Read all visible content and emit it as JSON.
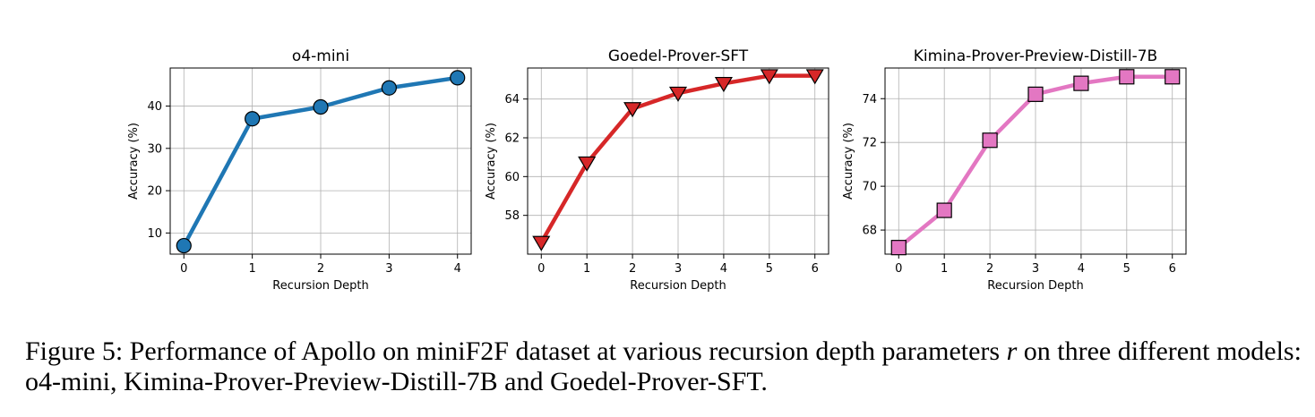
{
  "chart_data": [
    {
      "type": "line",
      "title": "o4-mini",
      "xlabel": "Recursion Depth",
      "ylabel": "Accuracy (%)",
      "x": [
        0,
        1,
        2,
        3,
        4
      ],
      "values": [
        7.0,
        37.0,
        39.8,
        44.3,
        46.7
      ],
      "xlim": [
        -0.2,
        4.2
      ],
      "ylim": [
        5,
        49
      ],
      "xticks": [
        "0",
        "1",
        "2",
        "3",
        "4"
      ],
      "yticks": [
        10,
        20,
        30,
        40
      ],
      "marker": "circle",
      "color": "#1f77b4",
      "grid": true
    },
    {
      "type": "line",
      "title": "Goedel-Prover-SFT",
      "xlabel": "Recursion Depth",
      "ylabel": "Accuracy (%)",
      "x": [
        0,
        1,
        2,
        3,
        4,
        5,
        6
      ],
      "values": [
        56.6,
        60.7,
        63.5,
        64.3,
        64.8,
        65.2,
        65.2
      ],
      "xlim": [
        -0.3,
        6.3
      ],
      "ylim": [
        56.0,
        65.6
      ],
      "xticks": [
        "0",
        "1",
        "2",
        "3",
        "4",
        "5",
        "6"
      ],
      "yticks": [
        58,
        60,
        62,
        64
      ],
      "marker": "triangle-down",
      "color": "#d62728",
      "grid": true
    },
    {
      "type": "line",
      "title": "Kimina-Prover-Preview-Distill-7B",
      "xlabel": "Recursion Depth",
      "ylabel": "Accuracy (%)",
      "x": [
        0,
        1,
        2,
        3,
        4,
        5,
        6
      ],
      "values": [
        67.2,
        68.9,
        72.1,
        74.2,
        74.7,
        75.0,
        75.0
      ],
      "xlim": [
        -0.3,
        6.3
      ],
      "ylim": [
        66.9,
        75.4
      ],
      "xticks": [
        "0",
        "1",
        "2",
        "3",
        "4",
        "5",
        "6"
      ],
      "yticks": [
        68,
        70,
        72,
        74
      ],
      "marker": "square",
      "color": "#e377c2",
      "grid": true
    }
  ],
  "caption": {
    "prefix": "Figure 5: Performance of Apollo on miniF2F dataset at various recursion depth parameters",
    "symbol": "r",
    "suffix": "on three different models: o4-mini, Kimina-Prover-Preview-Distill-7B and Goedel-Prover-SFT."
  }
}
